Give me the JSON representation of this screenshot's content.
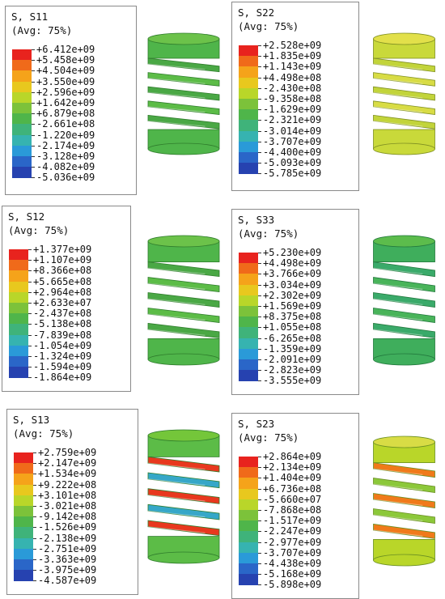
{
  "palette": [
    "#e8231e",
    "#f06a1a",
    "#f5a31a",
    "#e8c81e",
    "#b9d629",
    "#7cc23a",
    "#4fb54a",
    "#3fb37a",
    "#36b3b0",
    "#2a9ad8",
    "#2a66c8",
    "#2642b0"
  ],
  "panels": [
    {
      "id": "s11",
      "title": "S, S11",
      "subtitle": "(Avg: 75%)",
      "labels": [
        "+6.412e+09",
        "+5.458e+09",
        "+4.504e+09",
        "+3.550e+09",
        "+2.596e+09",
        "+1.642e+09",
        "+6.879e+08",
        "-2.661e+08",
        "-1.220e+09",
        "-2.174e+09",
        "-3.128e+09",
        "-4.082e+09",
        "-5.036e+09"
      ],
      "spring_color": "green"
    },
    {
      "id": "s22",
      "title": "S, S22",
      "subtitle": "(Avg: 75%)",
      "labels": [
        "+2.528e+09",
        "+1.835e+09",
        "+1.143e+09",
        "+4.498e+08",
        "-2.430e+08",
        "-9.358e+08",
        "-1.629e+09",
        "-2.321e+09",
        "-3.014e+09",
        "-3.707e+09",
        "-4.400e+09",
        "-5.093e+09",
        "-5.785e+09"
      ],
      "spring_color": "yellow"
    },
    {
      "id": "s12",
      "title": "S, S12",
      "subtitle": "(Avg: 75%)",
      "labels": [
        "+1.377e+09",
        "+1.107e+09",
        "+8.366e+08",
        "+5.665e+08",
        "+2.964e+08",
        "+2.633e+07",
        "-2.437e+08",
        "-5.138e+08",
        "-7.839e+08",
        "-1.054e+09",
        "-1.324e+09",
        "-1.594e+09",
        "-1.864e+09"
      ],
      "spring_color": "green"
    },
    {
      "id": "s33",
      "title": "S, S33",
      "subtitle": "(Avg: 75%)",
      "labels": [
        "+5.230e+09",
        "+4.498e+09",
        "+3.766e+09",
        "+3.034e+09",
        "+2.302e+09",
        "+1.569e+09",
        "+8.375e+08",
        "+1.055e+08",
        "-6.265e+08",
        "-1.359e+09",
        "-2.091e+09",
        "-2.823e+09",
        "-3.555e+09"
      ],
      "spring_color": "teal"
    },
    {
      "id": "s13",
      "title": "S, S13",
      "subtitle": "(Avg: 75%)",
      "labels": [
        "+2.759e+09",
        "+2.147e+09",
        "+1.534e+09",
        "+9.222e+08",
        "+3.101e+08",
        "-3.021e+08",
        "-9.142e+08",
        "-1.526e+09",
        "-2.138e+09",
        "-2.751e+09",
        "-3.363e+09",
        "-3.975e+09",
        "-4.587e+09"
      ],
      "spring_color": "mixed-red"
    },
    {
      "id": "s23",
      "title": "S, S23",
      "subtitle": "(Avg: 75%)",
      "labels": [
        "+2.864e+09",
        "+2.134e+09",
        "+1.404e+09",
        "+6.736e+08",
        "-5.660e+07",
        "-7.868e+08",
        "-1.517e+09",
        "-2.247e+09",
        "-2.977e+09",
        "-3.707e+09",
        "-4.438e+09",
        "-5.168e+09",
        "-5.898e+09"
      ],
      "spring_color": "mixed-orange"
    }
  ]
}
